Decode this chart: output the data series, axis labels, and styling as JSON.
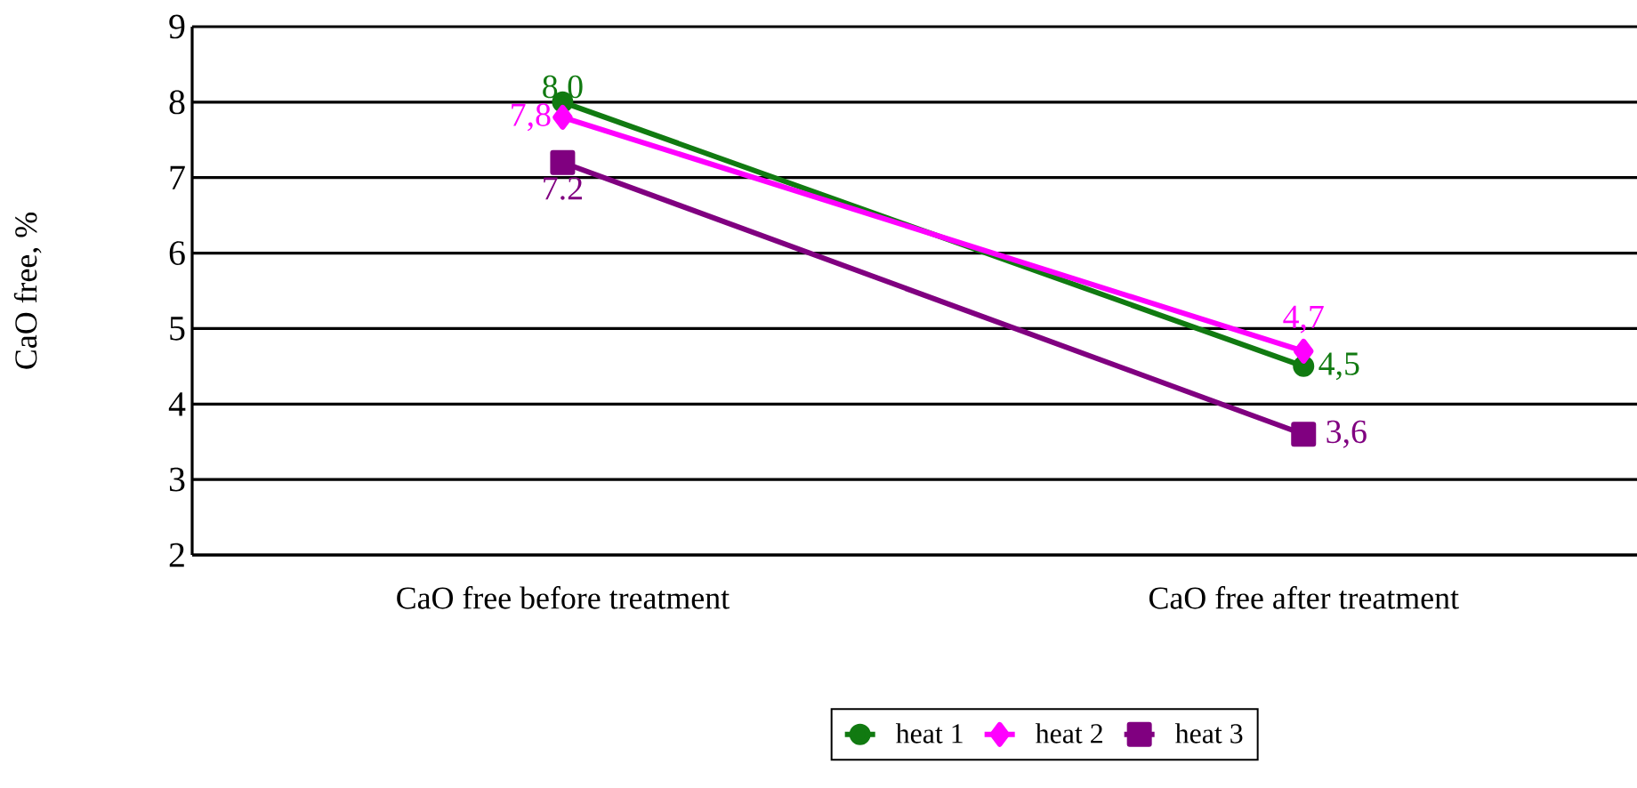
{
  "chart_data": {
    "type": "line",
    "ylabel": "CaO free, %",
    "categories": [
      "CaO free before treatment",
      "CaO free after treatment"
    ],
    "series": [
      {
        "name": "heat 1",
        "color": "#117a11",
        "marker": "circle",
        "values": [
          8.0,
          4.5
        ],
        "value_labels": [
          "8.0",
          "4,5"
        ]
      },
      {
        "name": "heat 2",
        "color": "#ff00ff",
        "marker": "diamond",
        "values": [
          7.8,
          4.7
        ],
        "value_labels": [
          "7,8",
          "4,7"
        ]
      },
      {
        "name": "heat 3",
        "color": "#800080",
        "marker": "square",
        "values": [
          7.2,
          3.6
        ],
        "value_labels": [
          "7.2",
          "3,6"
        ]
      }
    ],
    "ylim": [
      2,
      9
    ],
    "yticks": [
      2,
      3,
      4,
      5,
      6,
      7,
      8,
      9
    ],
    "grid": "y",
    "legend": "bottom",
    "line_style": "solid"
  }
}
